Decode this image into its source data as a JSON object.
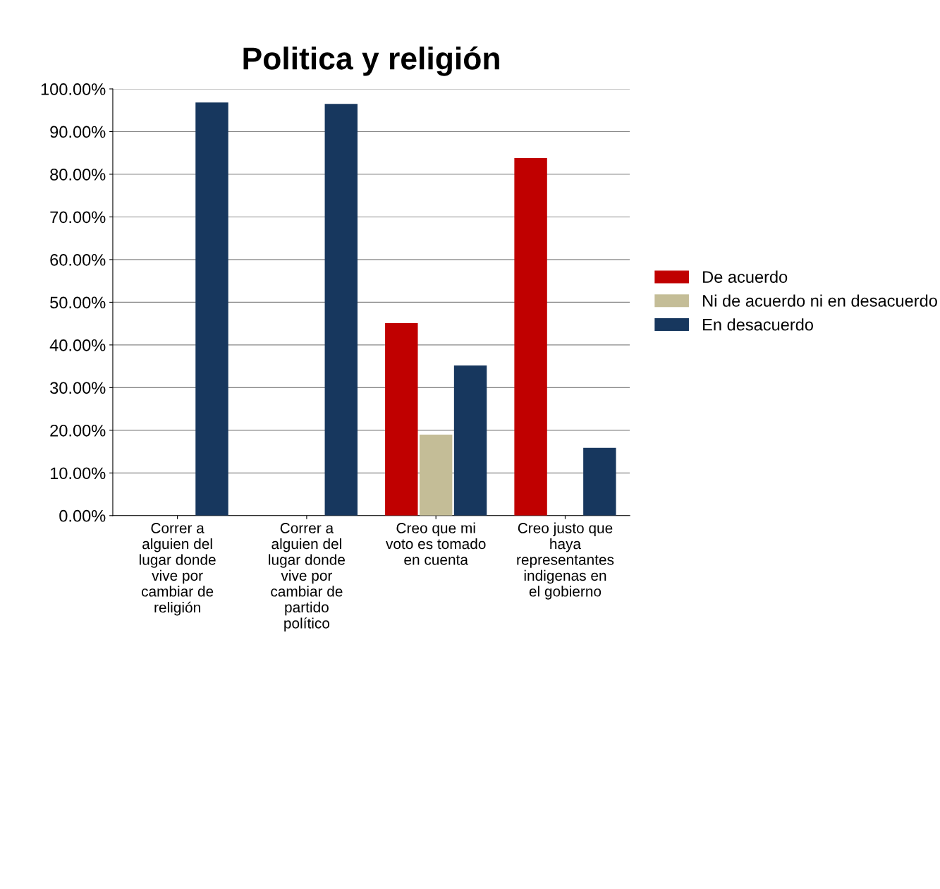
{
  "chart_data": {
    "type": "bar",
    "title": "Politica y religión",
    "categories": [
      "Correr a alguien del lugar donde vive por cambiar de religión",
      "Correr a alguien del lugar donde vive por cambiar de partido político",
      "Creo que mi voto es tomado en cuenta",
      "Creo justo que haya representantes indigenas en el gobierno"
    ],
    "series": [
      {
        "name": "De acuerdo",
        "color": "#c00000",
        "values": [
          null,
          null,
          45.1,
          83.8
        ]
      },
      {
        "name": "Ni de acuerdo ni en desacuerdo",
        "color": "#c4bd97",
        "values": [
          null,
          null,
          19.0,
          null
        ]
      },
      {
        "name": "En desacuerdo",
        "color": "#17375e",
        "values": [
          96.8,
          96.5,
          35.2,
          15.9
        ]
      }
    ],
    "ylim": [
      0,
      100
    ],
    "yticks": [
      {
        "value": 0,
        "label": "0.00%"
      },
      {
        "value": 10,
        "label": "10.00%"
      },
      {
        "value": 20,
        "label": "20.00%"
      },
      {
        "value": 30,
        "label": "30.00%"
      },
      {
        "value": 40,
        "label": "40.00%"
      },
      {
        "value": 50,
        "label": "50.00%"
      },
      {
        "value": 60,
        "label": "60.00%"
      },
      {
        "value": 70,
        "label": "70.00%"
      },
      {
        "value": 80,
        "label": "80.00%"
      },
      {
        "value": 90,
        "label": "90.00%"
      },
      {
        "value": 100,
        "label": "100.00%"
      }
    ],
    "grid": "y",
    "legend": "right"
  }
}
